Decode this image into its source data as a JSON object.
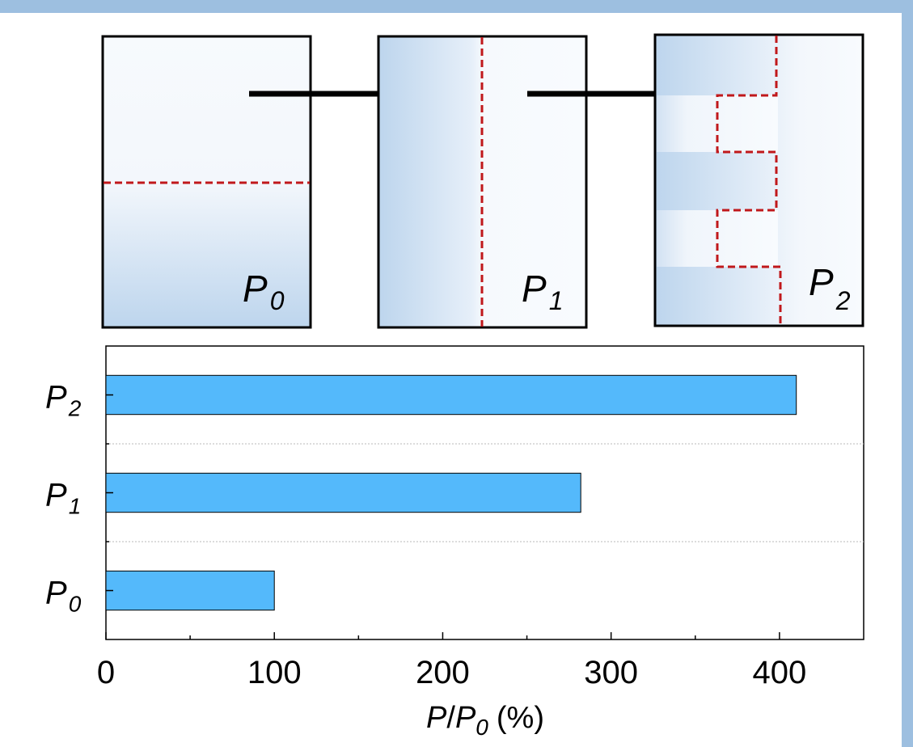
{
  "colors": {
    "frame": "#9dbfe0",
    "bar": "#54b9fb",
    "dash": "#c0181b",
    "gradient_dark": "#bcd4ec",
    "gradient_light": "#f5f9fd"
  },
  "panels": [
    {
      "sub": "0"
    },
    {
      "sub": "1"
    },
    {
      "sub": "2"
    }
  ],
  "chart_data": {
    "type": "bar",
    "orientation": "horizontal",
    "categories": [
      {
        "main": "P",
        "sub": "2"
      },
      {
        "main": "P",
        "sub": "1"
      },
      {
        "main": "P",
        "sub": "0"
      }
    ],
    "values": [
      410,
      282,
      100
    ],
    "xlim": [
      0,
      450
    ],
    "xticks": [
      "0",
      "100",
      "200",
      "300",
      "400"
    ],
    "xticks_values": [
      0,
      100,
      200,
      300,
      400
    ],
    "minor_ticks": [
      50,
      150,
      250,
      350
    ],
    "xlabel": {
      "p": "P",
      "slash": "/",
      "p0": "P",
      "sub": "0",
      "unit": "(%)"
    },
    "grid": "horizontal-dotted",
    "legend": "none"
  }
}
